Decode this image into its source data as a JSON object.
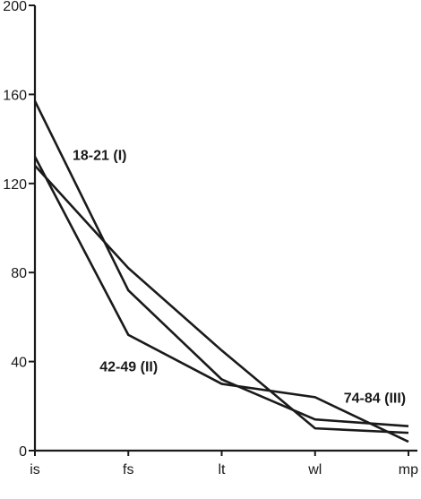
{
  "chart_data": {
    "type": "line",
    "categories": [
      "is",
      "fs",
      "lt",
      "wl",
      "mp"
    ],
    "ylim": [
      0,
      200
    ],
    "yticks": [
      0,
      40,
      80,
      120,
      160,
      200
    ],
    "grid": false,
    "series": [
      {
        "name": "18-21 (I)",
        "values": [
          157,
          72,
          32,
          14,
          11
        ]
      },
      {
        "name": "42-49 (II)",
        "values": [
          132,
          52,
          30,
          24,
          4
        ]
      },
      {
        "name": "74-84 (III)",
        "values": [
          128,
          82,
          45,
          10,
          8
        ]
      }
    ],
    "series_label_anchors": [
      {
        "text": "18-21 (I)",
        "x": "is",
        "y": 133
      },
      {
        "text": "42-49 (II)",
        "x": "fs",
        "y": 38
      },
      {
        "text": "74-84 (III)",
        "x": "wl",
        "y": 24
      }
    ]
  }
}
